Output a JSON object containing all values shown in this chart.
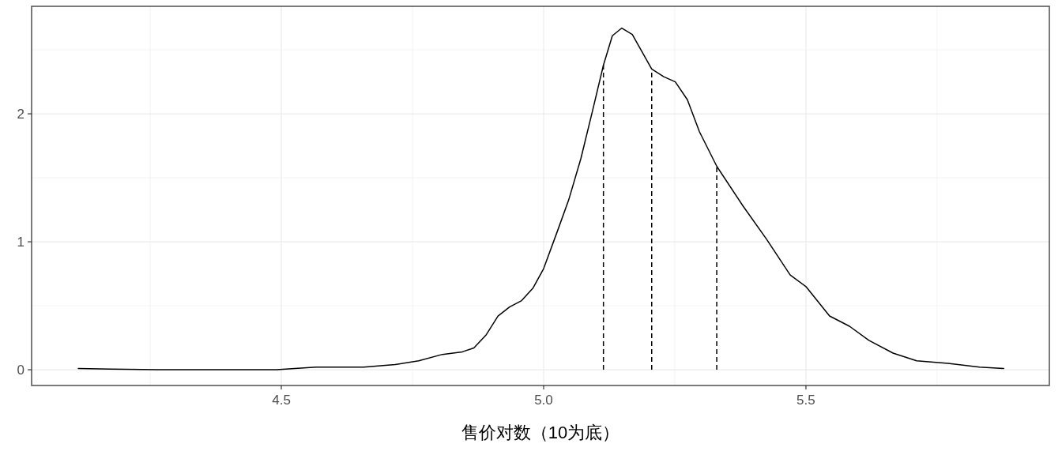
{
  "chart_data": {
    "type": "line",
    "xlabel": "售价对数（10为底）",
    "x": [
      4.113,
      4.175,
      4.265,
      4.491,
      4.566,
      4.657,
      4.717,
      4.762,
      4.807,
      4.845,
      4.867,
      4.89,
      4.913,
      4.935,
      4.958,
      4.98,
      5.0,
      5.026,
      5.048,
      5.071,
      5.093,
      5.114,
      5.131,
      5.149,
      5.169,
      5.191,
      5.206,
      5.229,
      5.251,
      5.274,
      5.297,
      5.33,
      5.38,
      5.425,
      5.47,
      5.5,
      5.545,
      5.583,
      5.62,
      5.666,
      5.711,
      5.771,
      5.831,
      5.877
    ],
    "series": [
      {
        "color": "#000000",
        "values": [
          0.01,
          0.005,
          0,
          0,
          0.02,
          0.02,
          0.04,
          0.07,
          0.12,
          0.14,
          0.17,
          0.27,
          0.42,
          0.49,
          0.54,
          0.64,
          0.79,
          1.08,
          1.33,
          1.65,
          2.02,
          2.38,
          2.61,
          2.67,
          2.62,
          2.46,
          2.35,
          2.29,
          2.25,
          2.11,
          1.86,
          1.59,
          1.28,
          1.02,
          0.74,
          0.65,
          0.42,
          0.34,
          0.23,
          0.13,
          0.07,
          0.05,
          0.02,
          0.01
        ]
      }
    ],
    "xlim": [
      4.024,
      5.964
    ],
    "ylim": [
      -0.123,
      2.84
    ],
    "xticks": [
      4.5,
      {
        "value": 5,
        "label": "5.0"
      },
      5.5
    ],
    "yticks": [
      0,
      1,
      2
    ],
    "grid": true,
    "ref_lines": [
      {
        "axis": "x",
        "value": 5.114,
        "label": null,
        "color": "#000000",
        "line_style": "dashed"
      },
      {
        "axis": "x",
        "value": 5.206,
        "label": null,
        "color": "#000000",
        "line_style": "dashed"
      },
      {
        "axis": "x",
        "value": 5.33,
        "label": null,
        "color": "#000000",
        "line_style": "dashed"
      }
    ]
  }
}
